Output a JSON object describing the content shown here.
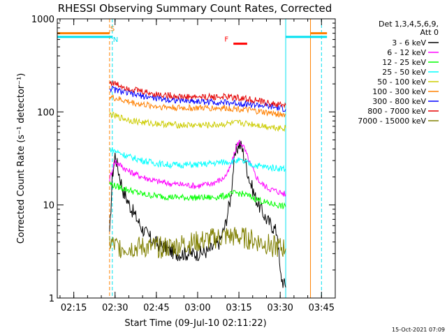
{
  "chart_data": {
    "type": "line",
    "title": "RHESSI Observing Summary Count Rates, Corrected",
    "xlabel": "Start Time (09-Jul-10 02:11:22)",
    "ylabel": "Corrected Count Rate (s⁻¹ detector⁻¹)",
    "x_unit": "UT time (HH:MM)",
    "xlim": [
      "02:09",
      "03:50"
    ],
    "ylim": [
      1,
      1000
    ],
    "y_scale": "log",
    "x_ticks": [
      "02:15",
      "02:30",
      "02:45",
      "03:00",
      "03:15",
      "03:30",
      "03:45"
    ],
    "y_ticks": [
      {
        "value": 1,
        "label": "1"
      },
      {
        "value": 10,
        "label": "10"
      },
      {
        "value": 100,
        "label": "100"
      },
      {
        "value": 1000,
        "label": "1000"
      }
    ],
    "legend_header": [
      "Det 1,3,4,5,6,9,",
      "Att 0"
    ],
    "legend_position": "right",
    "flags": [
      {
        "label": "S",
        "color": "#ff8000",
        "y_value": 700,
        "segments": [
          [
            "02:09",
            "02:28"
          ],
          [
            "03:41",
            "03:47"
          ]
        ]
      },
      {
        "label": "N",
        "color": "#00e0f0",
        "y_value": 640,
        "segments": [
          [
            "02:09",
            "02:29"
          ],
          [
            "03:32",
            "03:47"
          ]
        ]
      },
      {
        "label": "F",
        "color": "#ff0000",
        "y_value": 540,
        "segments": [
          [
            "03:13",
            "03:18"
          ]
        ]
      }
    ],
    "vlines": [
      {
        "time": "02:09",
        "color": "#00e0f0",
        "dash": "solid"
      },
      {
        "time": "02:28",
        "color": "#ff8000",
        "dash": "dashed"
      },
      {
        "time": "02:29",
        "color": "#00e0f0",
        "dash": "dashed"
      },
      {
        "time": "03:32",
        "color": "#00e0f0",
        "dash": "solid"
      },
      {
        "time": "03:41",
        "color": "#ff8000",
        "dash": "solid"
      },
      {
        "time": "03:45",
        "color": "#00e0f0",
        "dash": "dashed"
      }
    ],
    "series": [
      {
        "name": "3 - 6 keV",
        "color": "#000000",
        "x": [
          "02:28",
          "02:29",
          "02:30",
          "02:31",
          "02:33",
          "02:36",
          "02:40",
          "02:44",
          "02:48",
          "02:52",
          "02:56",
          "03:00",
          "03:04",
          "03:08",
          "03:10",
          "03:12",
          "03:13",
          "03:14",
          "03:15",
          "03:16",
          "03:17",
          "03:19",
          "03:21",
          "03:23",
          "03:25",
          "03:27",
          "03:29",
          "03:30",
          "03:31",
          "03:32"
        ],
        "y": [
          4.5,
          20,
          35,
          25,
          14,
          9,
          5.5,
          4,
          3.5,
          3,
          3,
          3,
          3.2,
          4,
          6,
          12,
          25,
          38,
          45,
          42,
          32,
          18,
          12,
          9,
          7,
          6,
          5,
          1.8,
          1.5,
          1.3
        ]
      },
      {
        "name": "6 - 12 keV",
        "color": "#ff00ff",
        "x": [
          "02:28",
          "02:29",
          "02:30",
          "02:31",
          "02:35",
          "02:40",
          "02:45",
          "02:50",
          "02:55",
          "03:00",
          "03:05",
          "03:09",
          "03:11",
          "03:13",
          "03:14",
          "03:15",
          "03:16",
          "03:17",
          "03:19",
          "03:21",
          "03:23",
          "03:26",
          "03:29",
          "03:32"
        ],
        "y": [
          19,
          24,
          30,
          28,
          23,
          20,
          18,
          17,
          16.5,
          16,
          17,
          19,
          22,
          32,
          42,
          48,
          46,
          40,
          28,
          21,
          17,
          15,
          14,
          13
        ]
      },
      {
        "name": "12 - 25 keV",
        "color": "#00ff00",
        "x": [
          "02:28",
          "02:30",
          "02:35",
          "02:40",
          "02:45",
          "02:50",
          "02:55",
          "03:00",
          "03:05",
          "03:10",
          "03:14",
          "03:17",
          "03:20",
          "03:25",
          "03:29",
          "03:32"
        ],
        "y": [
          17,
          16,
          14.5,
          13,
          12.5,
          12.2,
          12,
          12,
          12,
          12.5,
          13.5,
          13,
          12,
          10.5,
          10,
          9.5
        ]
      },
      {
        "name": "25 - 50 keV",
        "color": "#00ffff",
        "x": [
          "02:28",
          "02:30",
          "02:35",
          "02:40",
          "02:45",
          "02:50",
          "02:55",
          "03:00",
          "03:05",
          "03:10",
          "03:15",
          "03:20",
          "03:25",
          "03:29",
          "03:32"
        ],
        "y": [
          40,
          38,
          33,
          30,
          28,
          27,
          27,
          27,
          28,
          29,
          30,
          27,
          25.5,
          25,
          24.5
        ]
      },
      {
        "name": "50 - 100 keV",
        "color": "#cccc00",
        "x": [
          "02:28",
          "02:30",
          "02:35",
          "02:40",
          "02:45",
          "02:50",
          "02:55",
          "03:00",
          "03:05",
          "03:10",
          "03:15",
          "03:20",
          "03:25",
          "03:29",
          "03:32"
        ],
        "y": [
          95,
          90,
          82,
          77,
          75,
          73,
          72,
          72,
          72,
          74,
          76,
          74,
          70,
          68,
          67
        ]
      },
      {
        "name": "100 - 300 keV",
        "color": "#ff8000",
        "x": [
          "02:28",
          "02:30",
          "02:35",
          "02:40",
          "02:45",
          "02:50",
          "02:55",
          "03:00",
          "03:05",
          "03:10",
          "03:15",
          "03:20",
          "03:25",
          "03:29",
          "03:32"
        ],
        "y": [
          145,
          140,
          128,
          120,
          115,
          112,
          110,
          110,
          110,
          110,
          108,
          103,
          98,
          95,
          93
        ]
      },
      {
        "name": "300 - 800 keV",
        "color": "#0000ff",
        "x": [
          "02:28",
          "02:30",
          "02:35",
          "02:40",
          "02:45",
          "02:50",
          "02:55",
          "03:00",
          "03:05",
          "03:10",
          "03:15",
          "03:20",
          "03:25",
          "03:29",
          "03:32"
        ],
        "y": [
          180,
          172,
          158,
          148,
          140,
          135,
          132,
          130,
          128,
          126,
          124,
          120,
          115,
          110,
          107
        ]
      },
      {
        "name": "800 - 7000 keV",
        "color": "#e40000",
        "x": [
          "02:28",
          "02:30",
          "02:35",
          "02:40",
          "02:45",
          "02:50",
          "02:55",
          "03:00",
          "03:05",
          "03:10",
          "03:15",
          "03:20",
          "03:25",
          "03:29",
          "03:32"
        ],
        "y": [
          210,
          200,
          180,
          165,
          155,
          150,
          145,
          145,
          145,
          145,
          142,
          135,
          125,
          120,
          118
        ]
      },
      {
        "name": "7000 - 15000 keV",
        "color": "#808000",
        "x": [
          "02:28",
          "02:30",
          "02:33",
          "02:36",
          "02:40",
          "02:45",
          "02:50",
          "02:55",
          "03:00",
          "03:05",
          "03:10",
          "03:15",
          "03:20",
          "03:25",
          "03:29",
          "03:32"
        ],
        "y": [
          4,
          3.6,
          3.5,
          3.5,
          3.5,
          3.5,
          3.5,
          3.8,
          4,
          4.3,
          4.6,
          4.5,
          4.2,
          3.8,
          3.5,
          3.4
        ]
      }
    ]
  },
  "footer": {
    "date_stamp": "15-Oct-2021 07:09"
  }
}
